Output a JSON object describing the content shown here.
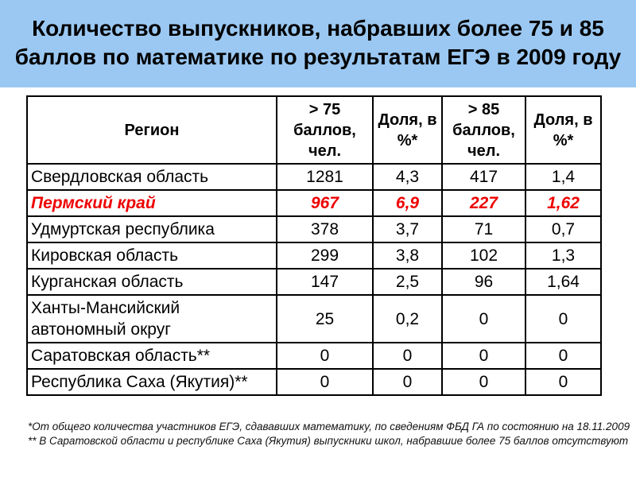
{
  "slide": {
    "title": "Количество выпускников, набравших более 75 и 85 баллов по математике по результатам ЕГЭ в 2009 году"
  },
  "table": {
    "columns": [
      "Регион",
      "> 75 баллов, чел.",
      "Доля, в %*",
      "> 85 баллов, чел.",
      "Доля, в %*"
    ],
    "rows": [
      {
        "cells": [
          "Свердловская область",
          "1281",
          "4,3",
          "417",
          "1,4"
        ],
        "highlight": false
      },
      {
        "cells": [
          "Пермский край",
          "967",
          "6,9",
          "227",
          "1,62"
        ],
        "highlight": true
      },
      {
        "cells": [
          "Удмуртская республика",
          "378",
          "3,7",
          "71",
          "0,7"
        ],
        "highlight": false
      },
      {
        "cells": [
          "Кировская область",
          "299",
          "3,8",
          "102",
          "1,3"
        ],
        "highlight": false
      },
      {
        "cells": [
          "Курганская область",
          "147",
          "2,5",
          "96",
          "1,64"
        ],
        "highlight": false
      },
      {
        "cells": [
          "Ханты-Мансийский автономный округ",
          "25",
          "0,2",
          "0",
          "0"
        ],
        "highlight": false
      },
      {
        "cells": [
          "Саратовская область**",
          "0",
          "0",
          "0",
          "0"
        ],
        "highlight": false
      },
      {
        "cells": [
          "Республика Саха (Якутия)**",
          "0",
          "0",
          "0",
          "0"
        ],
        "highlight": false
      }
    ]
  },
  "footnotes": [
    "*От общего количества участников ЕГЭ, сдававших математику, по сведениям ФБД ГА по состоянию на 18.11.2009",
    "** В Саратовской области и республике Саха (Якутия) выпускники школ, набравшие более 75 баллов отсутствуют"
  ],
  "colors": {
    "title_background": "#9BC8F2",
    "highlight_text": "#EE0000",
    "border": "#000000"
  }
}
